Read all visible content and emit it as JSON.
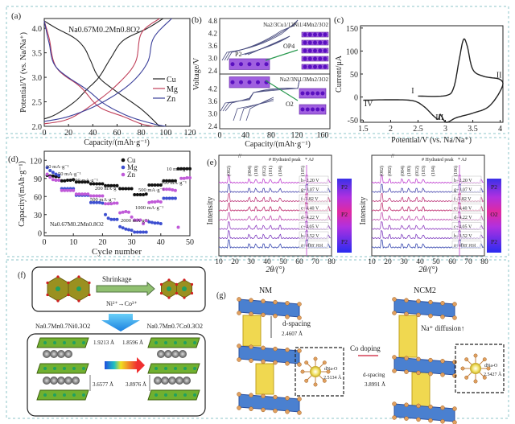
{
  "panels": {
    "a": {
      "label": "(a)",
      "formula": "Na0.67M0.2Mn0.8O2",
      "xlabel": "Capacity/(mAh·g⁻¹)",
      "ylabel": "Potential/V (vs. Na/Na⁺)"
    },
    "b": {
      "label": "(b)",
      "ylabel": "Voltage/V",
      "xlabel": "Capacity/(mAh·g⁻¹)",
      "top_formula": "Na2/3Cu1/12Ni1/4Mn2/3O2",
      "bottom_formula": "Na2/3Ni1/3Mn2/3O2",
      "phase_start": "P2",
      "phase_top": "OP4",
      "phase_bottom": "O2",
      "yticks": [
        "2.4",
        "3.0",
        "3.6",
        "4.2",
        "4.8"
      ],
      "xticks": [
        "0",
        "40",
        "80",
        "120",
        "160"
      ]
    },
    "c": {
      "label": "(c)",
      "xlabel": "Potential/V (vs. Na/Na⁺)",
      "ylabel": "Current/μA",
      "markers": [
        "I",
        "II",
        "III",
        "IV"
      ]
    },
    "d": {
      "label": "(d)",
      "formula": "Na0.67M0.2Mn0.8O2",
      "xlabel": "Cycle number",
      "ylabel": "Capacity/(mAh·g⁻¹)",
      "rates": [
        "10 mA·g⁻¹",
        "50 mA·g⁻¹",
        "100 mA·g⁻¹",
        "200 mA·g⁻¹",
        "500 mA·g⁻¹",
        "1000 mA·g⁻¹",
        "2000 mA·g⁻¹",
        "500 mA·g⁻¹",
        "100 mA·g⁻¹",
        "10 mA·g⁻¹"
      ]
    },
    "e": {
      "label": "(e)",
      "xlabel": "2θ/(°)",
      "ylabel": "Intensity",
      "legend_hydrated": "# Hydrated peak",
      "legend_aj": "* AJ",
      "left_peaks": [
        "(002)",
        "(004)",
        "(100)",
        "(012)",
        "(101)",
        "(104)",
        "(105)"
      ],
      "right_peaks": [
        "(002)",
        "(002)",
        "(004)",
        "(100)",
        "(012)",
        "(103)",
        "(104)",
        "(106)"
      ],
      "states": [
        "h−2.20 V",
        "g−3.07 V",
        "f−3.82 V",
        "e−4.40 V",
        "d−4.22 V",
        "c−4.05 V",
        "b−3.52 V",
        "a−after rest"
      ],
      "left_phases": [
        "P2",
        "P2",
        "P2"
      ],
      "right_phases": [
        "P2",
        "O2",
        "P2"
      ],
      "xticks": [
        "10",
        "20",
        "30",
        "40",
        "50",
        "60",
        "70",
        "80"
      ]
    },
    "f": {
      "label": "(f)",
      "arrow_text": "Shrinkage",
      "reaction": "Ni²⁺→Co³⁺",
      "left_formula": "Na0.7Mn0.7Ni0.3O2",
      "right_formula": "Na0.7Mn0.7Co0.3O2",
      "left_bond": "1.9213 Å",
      "right_bond": "1.8596 Å",
      "left_spacing": "3.6577 Å",
      "right_spacing": "3.8976 Å"
    },
    "g": {
      "label": "(g)",
      "left_title": "NM",
      "right_title": "NCM2",
      "d_spacing_label": "d-spacing",
      "left_spacing": "2.4607 Å",
      "right_spacing": "3.8991 Å",
      "arrow_text": "Co doping",
      "diffusion": "Na⁺ diffusion↑",
      "dnao": "dNa-O",
      "left_dnao": "2.5134 Å",
      "right_dnao": "2.5427 Å"
    }
  },
  "colors": {
    "Cu": "#222222",
    "Mg": "#c0405a",
    "Zn": "#3a3f9a",
    "rate_Cu": "#111111",
    "rate_Mg": "#3d4fd0",
    "rate_Zn": "#c05ad8",
    "border": "#8cc4c8"
  },
  "chart_data": [
    {
      "panel": "a",
      "type": "line",
      "xlim": [
        0,
        120
      ],
      "ylim": [
        2.0,
        4.2
      ],
      "xticks": [
        0,
        20,
        40,
        60,
        80,
        100,
        120
      ],
      "yticks": [
        2.0,
        2.5,
        3.0,
        3.5,
        4.0
      ],
      "legend": "right",
      "series": [
        {
          "name": "Cu",
          "discharge": [
            [
              0,
              4.15
            ],
            [
              10,
              4.0
            ],
            [
              25,
              3.8
            ],
            [
              33,
              3.6
            ],
            [
              38,
              3.35
            ],
            [
              45,
              3.0
            ],
            [
              60,
              2.7
            ],
            [
              80,
              2.35
            ],
            [
              95,
              2.0
            ]
          ],
          "charge": [
            [
              0,
              2.15
            ],
            [
              10,
              2.25
            ],
            [
              25,
              2.5
            ],
            [
              35,
              2.75
            ],
            [
              45,
              3.0
            ],
            [
              55,
              3.4
            ],
            [
              65,
              3.75
            ],
            [
              85,
              4.0
            ],
            [
              98,
              4.2
            ]
          ]
        },
        {
          "name": "Mg",
          "discharge": [
            [
              0,
              4.15
            ],
            [
              4,
              3.8
            ],
            [
              10,
              3.2
            ],
            [
              30,
              2.8
            ],
            [
              45,
              2.4
            ],
            [
              65,
              2.2
            ],
            [
              80,
              2.05
            ],
            [
              90,
              2.0
            ]
          ],
          "charge": [
            [
              0,
              2.05
            ],
            [
              20,
              2.15
            ],
            [
              40,
              2.45
            ],
            [
              60,
              2.85
            ],
            [
              75,
              3.3
            ],
            [
              80,
              3.9
            ],
            [
              95,
              4.2
            ]
          ]
        },
        {
          "name": "Zn",
          "discharge": [
            [
              0,
              4.15
            ],
            [
              4,
              3.7
            ],
            [
              10,
              3.2
            ],
            [
              35,
              2.75
            ],
            [
              50,
              2.45
            ],
            [
              70,
              2.2
            ],
            [
              90,
              2.05
            ],
            [
              100,
              2.0
            ]
          ],
          "charge": [
            [
              0,
              2.1
            ],
            [
              20,
              2.2
            ],
            [
              45,
              2.45
            ],
            [
              70,
              2.85
            ],
            [
              85,
              3.3
            ],
            [
              90,
              3.8
            ],
            [
              105,
              4.2
            ]
          ]
        }
      ]
    },
    {
      "panel": "c",
      "type": "line",
      "xlim": [
        1.5,
        4.0
      ],
      "ylim": [
        -50,
        150
      ],
      "xticks": [
        1.5,
        2.0,
        2.5,
        3.0,
        3.5,
        4.0
      ],
      "yticks": [
        -50,
        0,
        50,
        100,
        150
      ],
      "series": [
        {
          "points": [
            [
              2.5,
              2
            ],
            [
              3.0,
              3
            ],
            [
              3.15,
              20
            ],
            [
              3.25,
              80
            ],
            [
              3.33,
              125
            ],
            [
              3.4,
              110
            ],
            [
              3.5,
              60
            ],
            [
              3.7,
              45
            ],
            [
              4.0,
              38
            ],
            [
              4.03,
              20
            ],
            [
              3.8,
              -20
            ],
            [
              3.5,
              -35
            ],
            [
              3.2,
              -45
            ],
            [
              3.02,
              -55
            ],
            [
              2.93,
              -42
            ],
            [
              2.9,
              -38
            ],
            [
              2.87,
              -48
            ],
            [
              2.8,
              -43
            ],
            [
              2.6,
              -20
            ],
            [
              2.4,
              -8
            ],
            [
              2.0,
              -6
            ],
            [
              1.5,
              -7
            ]
          ]
        }
      ]
    },
    {
      "panel": "d",
      "type": "scatter",
      "xlim": [
        0,
        50
      ],
      "ylim": [
        0,
        135
      ],
      "xticks": [
        0,
        10,
        20,
        30,
        40,
        50
      ],
      "yticks": [
        0,
        30,
        60,
        90,
        120
      ],
      "legend": "top-center",
      "series": [
        {
          "name": "Cu",
          "values": [
            95,
            94,
            94,
            93,
            93,
            86,
            86,
            87,
            87,
            88,
            84,
            84,
            84,
            84,
            84,
            81,
            81,
            81,
            81,
            81,
            78,
            78,
            78,
            78,
            78,
            73,
            73,
            73,
            73,
            73,
            63,
            63,
            63,
            63,
            64,
            79,
            79,
            79,
            79,
            79,
            86,
            86,
            86,
            86,
            86,
            106,
            106,
            106,
            106,
            106
          ]
        },
        {
          "name": "Mg",
          "values": [
            108,
            103,
            100,
            97,
            95,
            73,
            73,
            73,
            73,
            73,
            62,
            62,
            62,
            62,
            62,
            50,
            50,
            50,
            50,
            49,
            30,
            24,
            22,
            22,
            22,
            10,
            8,
            6,
            5,
            4,
            1,
            1,
            1,
            1,
            1,
            18,
            17,
            16,
            16,
            15,
            57,
            57,
            57,
            57,
            57,
            null,
            null,
            null,
            null,
            null
          ]
        },
        {
          "name": "Zn",
          "values": [
            97,
            92,
            88,
            87,
            87,
            70,
            70,
            70,
            70,
            70,
            64,
            64,
            64,
            64,
            64,
            61,
            61,
            61,
            61,
            61,
            48,
            48,
            48,
            49,
            49,
            33,
            34,
            35,
            34,
            26,
            21,
            21,
            21,
            15,
            20,
            50,
            51,
            51,
            52,
            51,
            72,
            72,
            72,
            71,
            70,
            9,
            90,
            90,
            91,
            91
          ]
        }
      ]
    }
  ]
}
